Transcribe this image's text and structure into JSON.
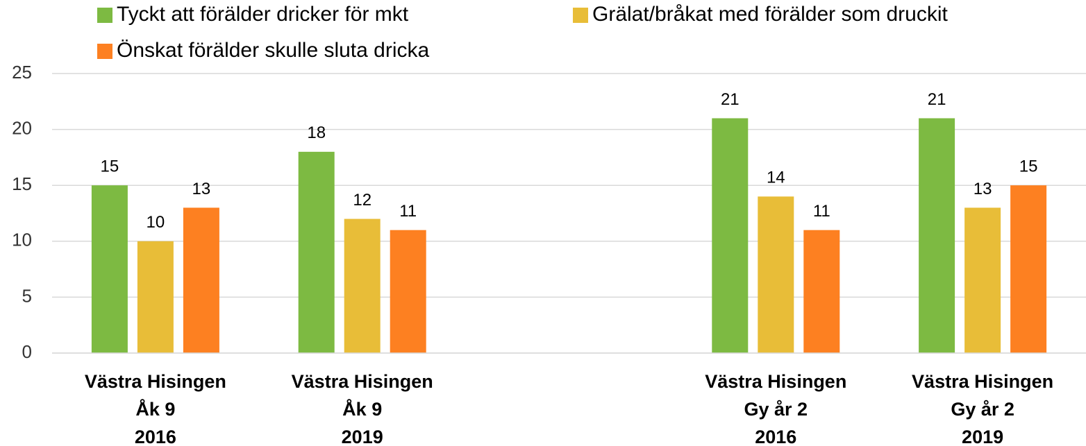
{
  "chart_data": {
    "type": "bar",
    "categories": [
      [
        "Västra Hisingen",
        "Åk 9",
        "2016"
      ],
      [
        "Västra Hisingen",
        "Åk 9",
        "2019"
      ],
      null,
      [
        "Västra Hisingen",
        "Gy år 2",
        "2016"
      ],
      [
        "Västra Hisingen",
        "Gy år 2",
        "2019"
      ]
    ],
    "series": [
      {
        "name": "Tyckt att förälder dricker för mkt",
        "color": "#7dba42",
        "values": [
          15,
          18,
          null,
          21,
          21
        ]
      },
      {
        "name": "Grälat/bråkat med förälder som druckit",
        "color": "#e8bd38",
        "values": [
          10,
          12,
          null,
          14,
          13
        ]
      },
      {
        "name": "Önskat förälder skulle sluta dricka",
        "color": "#fd8021",
        "values": [
          13,
          11,
          null,
          11,
          15
        ]
      }
    ],
    "ylim": [
      0,
      25
    ],
    "yticks": [
      0,
      5,
      10,
      15,
      20,
      25
    ],
    "grid": true,
    "legend": "top"
  }
}
